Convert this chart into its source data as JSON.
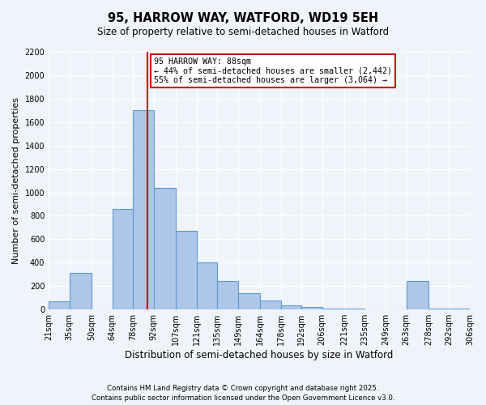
{
  "title": "95, HARROW WAY, WATFORD, WD19 5EH",
  "subtitle": "Size of property relative to semi-detached houses in Watford",
  "xlabel": "Distribution of semi-detached houses by size in Watford",
  "ylabel": "Number of semi-detached properties",
  "bar_edges": [
    21,
    35,
    50,
    64,
    78,
    92,
    107,
    121,
    135,
    149,
    164,
    178,
    192,
    206,
    221,
    235,
    249,
    263,
    278,
    292,
    306
  ],
  "bar_heights": [
    70,
    310,
    0,
    860,
    1700,
    1040,
    670,
    400,
    245,
    140,
    80,
    35,
    20,
    10,
    5,
    0,
    0,
    240,
    10,
    5
  ],
  "bar_color": "#aec6e8",
  "bar_edge_color": "#5b9bd5",
  "property_line_x": 88,
  "property_label": "95 HARROW WAY: 88sqm",
  "pct_smaller": 44,
  "pct_larger": 55,
  "count_smaller": 2442,
  "count_larger": 3064,
  "annotation_box_color": "#ffffff",
  "annotation_box_edge": "#cc0000",
  "line_color": "#cc0000",
  "ylim": [
    0,
    2200
  ],
  "yticks": [
    0,
    200,
    400,
    600,
    800,
    1000,
    1200,
    1400,
    1600,
    1800,
    2000,
    2200
  ],
  "tick_labels": [
    "21sqm",
    "35sqm",
    "50sqm",
    "64sqm",
    "78sqm",
    "92sqm",
    "107sqm",
    "121sqm",
    "135sqm",
    "149sqm",
    "164sqm",
    "178sqm",
    "192sqm",
    "206sqm",
    "221sqm",
    "235sqm",
    "249sqm",
    "263sqm",
    "278sqm",
    "292sqm",
    "306sqm"
  ],
  "bg_color": "#f0f4fa",
  "grid_color": "#ffffff",
  "footer1": "Contains HM Land Registry data © Crown copyright and database right 2025.",
  "footer2": "Contains public sector information licensed under the Open Government Licence v3.0."
}
